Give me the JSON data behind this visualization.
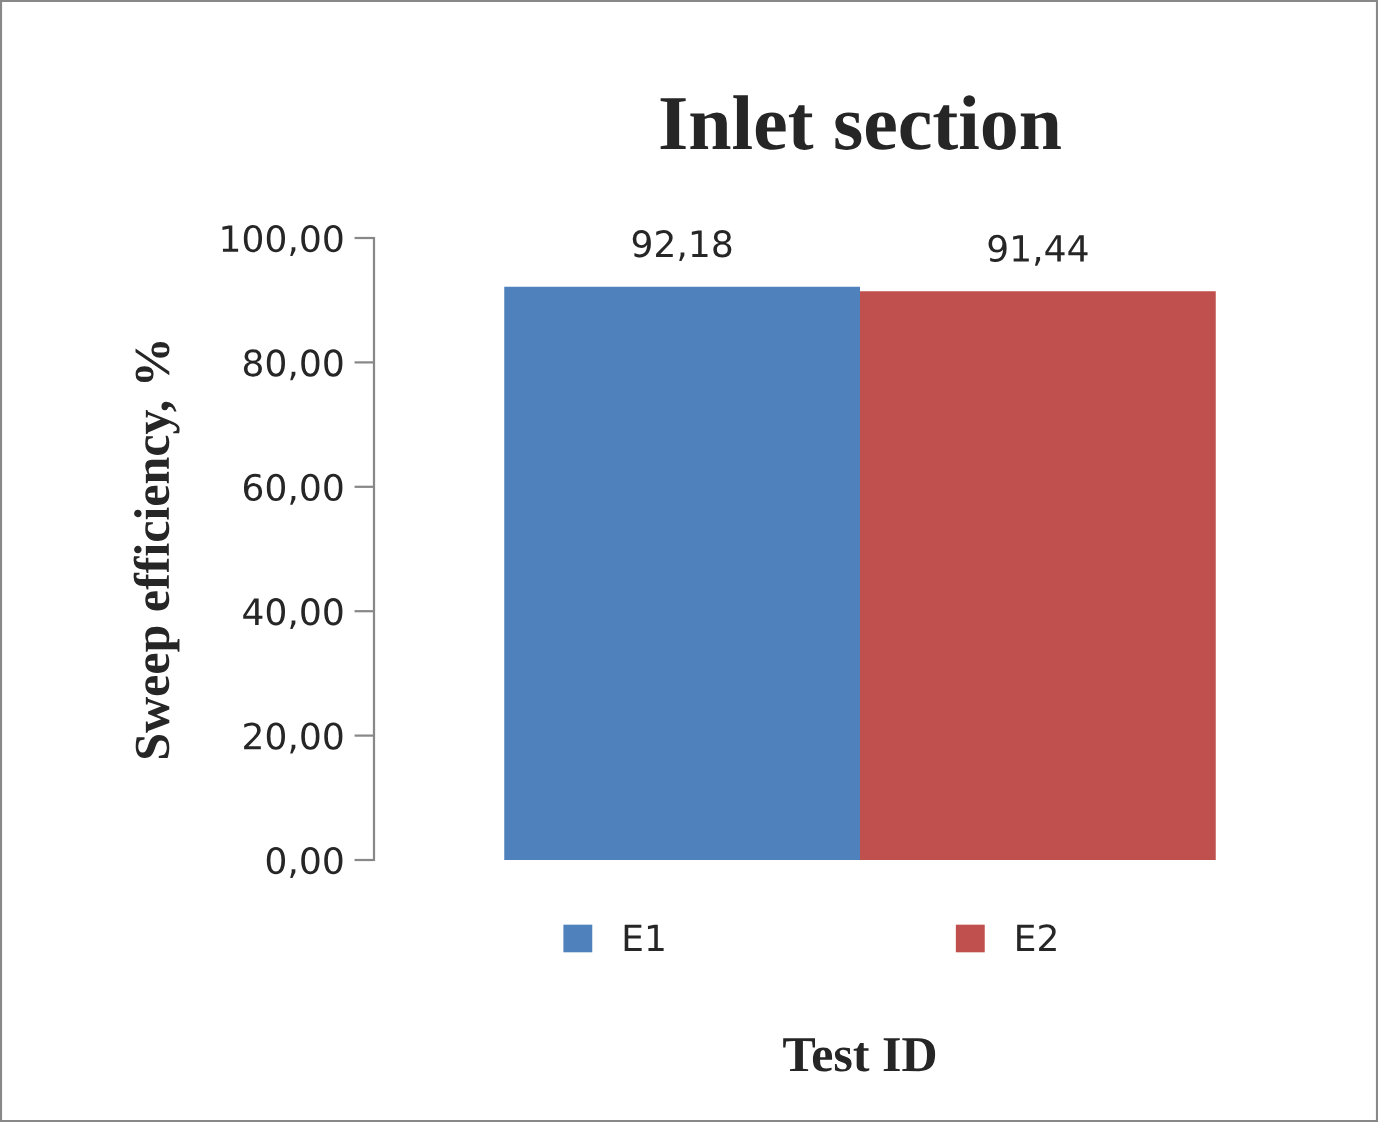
{
  "chart_data": {
    "type": "bar",
    "title": "Inlet section",
    "xlabel": "Test ID",
    "ylabel": "Sweep efficiency, %",
    "categories": [
      null
    ],
    "series": [
      {
        "name": "E1",
        "color": "#4f81bd",
        "values": [
          92.18
        ],
        "value_labels": [
          "92,18"
        ]
      },
      {
        "name": "E2",
        "color": "#c0504d",
        "values": [
          91.44
        ],
        "value_labels": [
          "91,44"
        ]
      }
    ],
    "ylim": [
      0,
      100
    ],
    "yticks": [
      {
        "value": 0,
        "label": "0,00"
      },
      {
        "value": 20,
        "label": "20,00"
      },
      {
        "value": 40,
        "label": "40,00"
      },
      {
        "value": 60,
        "label": "60,00"
      },
      {
        "value": 80,
        "label": "80,00"
      },
      {
        "value": 100,
        "label": "100,00"
      }
    ],
    "grid": false,
    "legend": "bottom"
  }
}
